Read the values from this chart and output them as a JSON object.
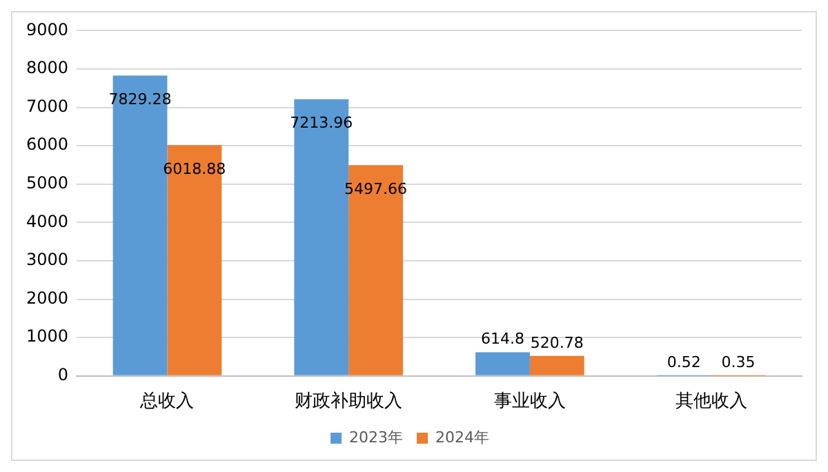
{
  "chart_data": {
    "type": "bar",
    "categories": [
      "总收入",
      "财政补助收入",
      "事业收入",
      "其他收入"
    ],
    "series": [
      {
        "name": "2023年",
        "color": "#5b9bd5",
        "values": [
          7829.28,
          7213.96,
          614.8,
          0.52
        ]
      },
      {
        "name": "2024年",
        "color": "#ed7d31",
        "values": [
          6018.88,
          5497.66,
          520.78,
          0.35
        ]
      }
    ],
    "ylim": [
      0,
      9000
    ],
    "yticks": [
      0,
      1000,
      2000,
      3000,
      4000,
      5000,
      6000,
      7000,
      8000,
      9000
    ],
    "grid": "y",
    "legend": "bottom",
    "data_labels": true
  }
}
